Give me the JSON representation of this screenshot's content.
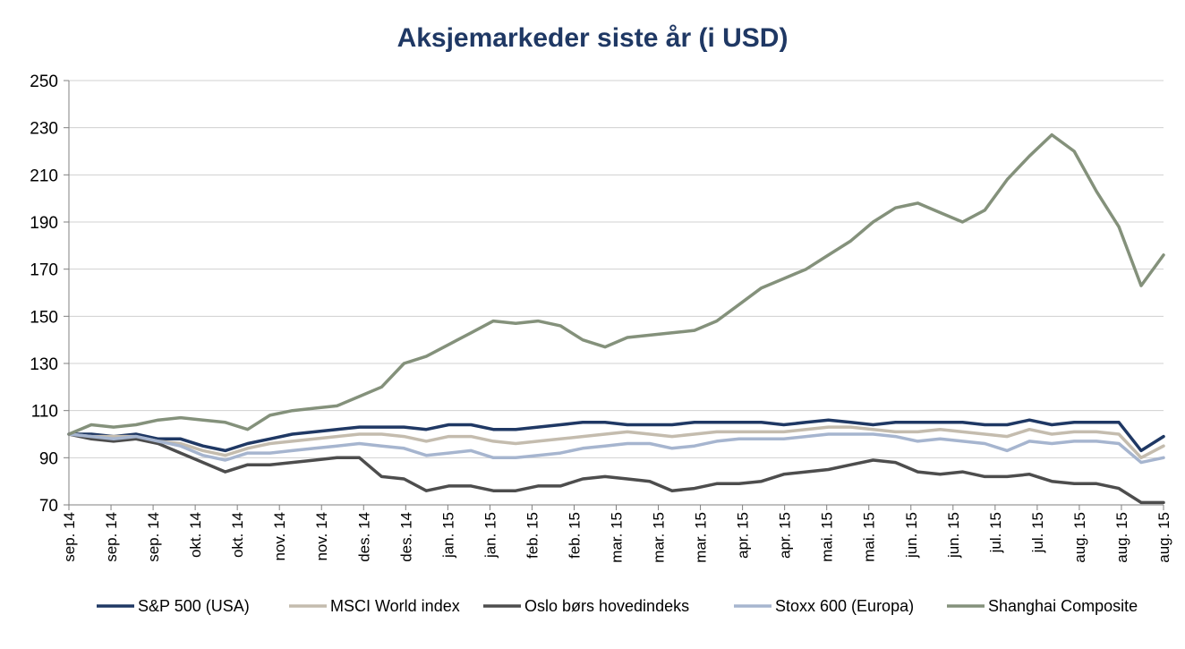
{
  "chart_data": {
    "type": "line",
    "title": "Aksjemarkeder siste år (i USD)",
    "xlabel": "",
    "ylabel": "",
    "ylim": [
      70,
      250
    ],
    "yticks": [
      70,
      90,
      110,
      130,
      150,
      170,
      190,
      210,
      230,
      250
    ],
    "grid": "horizontal",
    "legend_position": "bottom",
    "x_tick_labels": [
      "sep. 14",
      "sep. 14",
      "sep. 14",
      "okt. 14",
      "okt. 14",
      "nov. 14",
      "nov. 14",
      "des. 14",
      "des. 14",
      "jan. 15",
      "jan. 15",
      "feb. 15",
      "feb. 15",
      "mar. 15",
      "mar. 15",
      "mar. 15",
      "apr. 15",
      "apr. 15",
      "mai. 15",
      "mai. 15",
      "jun. 15",
      "jun. 15",
      "jul. 15",
      "jul. 15",
      "aug. 15",
      "aug. 15",
      "aug. 15"
    ],
    "series": [
      {
        "name": "S&P 500 (USA)",
        "color": "#1f3864",
        "values": [
          100,
          100,
          99,
          100,
          98,
          98,
          95,
          93,
          96,
          98,
          100,
          101,
          102,
          103,
          103,
          103,
          102,
          104,
          104,
          102,
          102,
          103,
          104,
          105,
          105,
          104,
          104,
          104,
          105,
          105,
          105,
          105,
          104,
          105,
          106,
          105,
          104,
          105,
          105,
          105,
          105,
          104,
          104,
          106,
          104,
          105,
          105,
          105,
          93,
          99
        ]
      },
      {
        "name": "MSCI World index",
        "color": "#c4bcae",
        "values": [
          100,
          99,
          99,
          99,
          97,
          96,
          93,
          91,
          94,
          96,
          97,
          98,
          99,
          100,
          100,
          99,
          97,
          99,
          99,
          97,
          96,
          97,
          98,
          99,
          100,
          101,
          100,
          99,
          100,
          101,
          101,
          101,
          101,
          102,
          103,
          103,
          102,
          101,
          101,
          102,
          101,
          100,
          99,
          102,
          100,
          101,
          101,
          100,
          90,
          95
        ]
      },
      {
        "name": "Oslo børs hovedindeks",
        "color": "#4d4d4d",
        "values": [
          100,
          98,
          97,
          98,
          96,
          92,
          88,
          84,
          87,
          87,
          88,
          89,
          90,
          90,
          82,
          81,
          76,
          78,
          78,
          76,
          76,
          78,
          78,
          81,
          82,
          81,
          80,
          76,
          77,
          79,
          79,
          80,
          83,
          84,
          85,
          87,
          89,
          88,
          84,
          83,
          84,
          82,
          82,
          83,
          80,
          79,
          79,
          77,
          71,
          71
        ]
      },
      {
        "name": "Stoxx 600 (Europa)",
        "color": "#a6b5cf",
        "values": [
          100,
          99,
          98,
          99,
          97,
          95,
          91,
          89,
          92,
          92,
          93,
          94,
          95,
          96,
          95,
          94,
          91,
          92,
          93,
          90,
          90,
          91,
          92,
          94,
          95,
          96,
          96,
          94,
          95,
          97,
          98,
          98,
          98,
          99,
          100,
          100,
          100,
          99,
          97,
          98,
          97,
          96,
          93,
          97,
          96,
          97,
          97,
          96,
          88,
          90
        ]
      },
      {
        "name": "Shanghai Composite",
        "color": "#84917b",
        "values": [
          100,
          104,
          103,
          104,
          106,
          107,
          106,
          105,
          102,
          108,
          110,
          111,
          112,
          116,
          120,
          130,
          133,
          138,
          143,
          148,
          147,
          148,
          146,
          140,
          137,
          141,
          142,
          143,
          144,
          148,
          155,
          162,
          166,
          170,
          176,
          182,
          190,
          196,
          198,
          194,
          190,
          195,
          208,
          218,
          227,
          220,
          203,
          188,
          163,
          176
        ]
      }
    ]
  }
}
